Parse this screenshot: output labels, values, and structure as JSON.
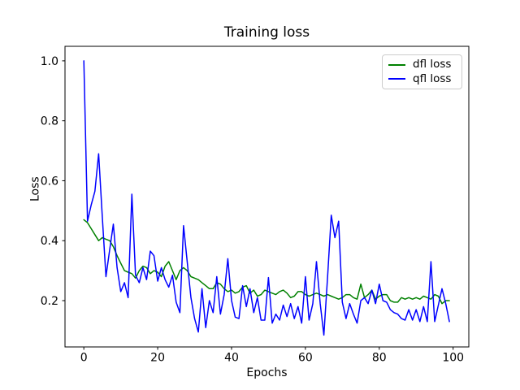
{
  "chart_data": {
    "type": "line",
    "title": "Training loss",
    "xlabel": "Epochs",
    "ylabel": "Loss",
    "grid": false,
    "legend_position": "upper right",
    "background_color": "#ffffff",
    "text_color": "#000000",
    "xlim": [
      -5.1,
      104.25
    ],
    "ylim": [
      0.0455,
      1.0485
    ],
    "xticks": [
      0,
      20,
      40,
      60,
      80,
      100
    ],
    "yticks": [
      0.2,
      0.4,
      0.6,
      0.8,
      1.0
    ],
    "ytick_labels": [
      "0.2",
      "0.4",
      "0.6",
      "0.8",
      "1.0"
    ],
    "line_width": 1.5,
    "x": [
      0,
      1,
      2,
      3,
      4,
      5,
      6,
      7,
      8,
      9,
      10,
      11,
      12,
      13,
      14,
      15,
      16,
      17,
      18,
      19,
      20,
      21,
      22,
      23,
      24,
      25,
      26,
      27,
      28,
      29,
      30,
      31,
      32,
      33,
      34,
      35,
      36,
      37,
      38,
      39,
      40,
      41,
      42,
      43,
      44,
      45,
      46,
      47,
      48,
      49,
      50,
      51,
      52,
      53,
      54,
      55,
      56,
      57,
      58,
      59,
      60,
      61,
      62,
      63,
      64,
      65,
      66,
      67,
      68,
      69,
      70,
      71,
      72,
      73,
      74,
      75,
      76,
      77,
      78,
      79,
      80,
      81,
      82,
      83,
      84,
      85,
      86,
      87,
      88,
      89,
      90,
      91,
      92,
      93,
      94,
      95,
      96,
      97,
      98,
      99
    ],
    "series": [
      {
        "name": "dfl loss",
        "color": "#008000",
        "values": [
          0.47,
          0.46,
          0.44,
          0.42,
          0.4,
          0.41,
          0.405,
          0.4,
          0.38,
          0.35,
          0.325,
          0.3,
          0.295,
          0.29,
          0.275,
          0.3,
          0.315,
          0.31,
          0.29,
          0.3,
          0.295,
          0.28,
          0.315,
          0.33,
          0.3,
          0.27,
          0.3,
          0.31,
          0.3,
          0.28,
          0.275,
          0.27,
          0.26,
          0.25,
          0.24,
          0.24,
          0.26,
          0.255,
          0.24,
          0.23,
          0.235,
          0.225,
          0.23,
          0.245,
          0.25,
          0.225,
          0.235,
          0.215,
          0.22,
          0.235,
          0.23,
          0.225,
          0.22,
          0.23,
          0.235,
          0.225,
          0.21,
          0.215,
          0.23,
          0.23,
          0.22,
          0.215,
          0.22,
          0.225,
          0.22,
          0.215,
          0.22,
          0.215,
          0.21,
          0.205,
          0.21,
          0.22,
          0.22,
          0.21,
          0.205,
          0.255,
          0.21,
          0.22,
          0.235,
          0.205,
          0.215,
          0.22,
          0.22,
          0.2,
          0.195,
          0.195,
          0.21,
          0.205,
          0.21,
          0.205,
          0.21,
          0.205,
          0.215,
          0.21,
          0.205,
          0.22,
          0.215,
          0.19,
          0.2,
          0.2
        ]
      },
      {
        "name": "qfl loss",
        "color": "#0000ff",
        "values": [
          1.0,
          0.465,
          0.52,
          0.565,
          0.69,
          0.48,
          0.28,
          0.37,
          0.455,
          0.31,
          0.23,
          0.26,
          0.21,
          0.555,
          0.285,
          0.26,
          0.31,
          0.27,
          0.365,
          0.35,
          0.265,
          0.31,
          0.27,
          0.245,
          0.285,
          0.195,
          0.16,
          0.45,
          0.33,
          0.21,
          0.14,
          0.095,
          0.24,
          0.11,
          0.2,
          0.16,
          0.28,
          0.155,
          0.22,
          0.34,
          0.2,
          0.145,
          0.14,
          0.25,
          0.18,
          0.24,
          0.16,
          0.21,
          0.135,
          0.135,
          0.277,
          0.125,
          0.155,
          0.135,
          0.185,
          0.147,
          0.19,
          0.14,
          0.18,
          0.125,
          0.28,
          0.135,
          0.19,
          0.33,
          0.19,
          0.085,
          0.28,
          0.485,
          0.41,
          0.465,
          0.195,
          0.14,
          0.19,
          0.155,
          0.125,
          0.2,
          0.21,
          0.19,
          0.235,
          0.19,
          0.255,
          0.2,
          0.195,
          0.17,
          0.16,
          0.155,
          0.14,
          0.135,
          0.17,
          0.135,
          0.17,
          0.13,
          0.18,
          0.13,
          0.33,
          0.13,
          0.185,
          0.24,
          0.19,
          0.13
        ]
      }
    ]
  }
}
